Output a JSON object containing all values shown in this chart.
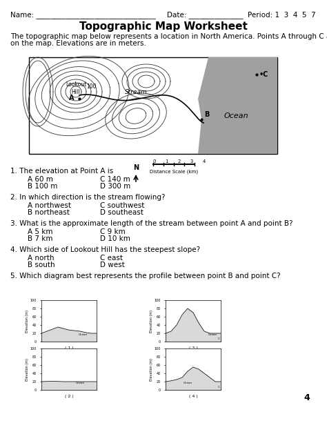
{
  "title": "Topographic Map Worksheet",
  "header_line": "Name: ___________________________________   Date: _______________  Period: 1  3  4  5  7",
  "intro_text": "The topographic map below represents a location in North America. Points A through C are locations\non the map. Elevations are in meters.",
  "questions": [
    {
      "num": "1.",
      "text": "The elevation at Point A is",
      "answers": [
        [
          "A 60 m",
          "C 140 m"
        ],
        [
          "B 100 m",
          "D 300 m"
        ]
      ]
    },
    {
      "num": "2.",
      "text": "In which direction is the stream flowing?",
      "answers": [
        [
          "A northwest",
          "C southwest"
        ],
        [
          "B northeast",
          "D southeast"
        ]
      ]
    },
    {
      "num": "3.",
      "text": "What is the approximate length of the stream between point A and point B?",
      "answers": [
        [
          "A 5 km",
          "C 9 km"
        ],
        [
          "B 7 km",
          "D 10 km"
        ]
      ]
    },
    {
      "num": "4.",
      "text": "Which side of Lookout Hill has the steepest slope?",
      "answers": [
        [
          "A north",
          "C east"
        ],
        [
          "B south",
          "D west"
        ]
      ]
    },
    {
      "num": "5.",
      "text": "Which diagram best represents the profile between point B and point C?",
      "answers": []
    }
  ],
  "map_ocean_color": "#b0b0b0",
  "map_bg_color": "#ffffff",
  "page_bg": "#ffffff",
  "text_color": "#000000",
  "page_number": "4"
}
